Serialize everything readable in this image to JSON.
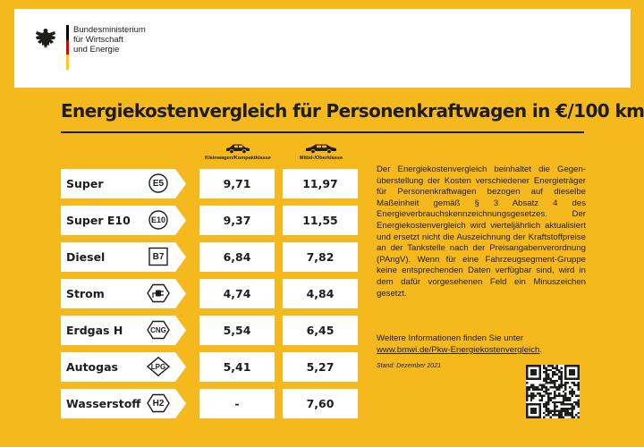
{
  "header": {
    "ministry_line1": "Bundesministerium",
    "ministry_line2": "für Wirtschaft",
    "ministry_line3": "und Energie",
    "flag_colors": [
      "#000000",
      "#dd0000",
      "#ffcc00"
    ]
  },
  "title": "Energiekostenvergleich für Personenkraftwagen in €/100 km",
  "columns": {
    "col1": "Kleinwagen/Kompaktklasse",
    "col2": "Mittel-/Oberklasse"
  },
  "rows": [
    {
      "fuel": "Super",
      "badge": "E5",
      "badge_shape": "circle",
      "v1": "9,71",
      "v2": "11,97"
    },
    {
      "fuel": "Super E10",
      "badge": "E10",
      "badge_shape": "circle",
      "v1": "9,37",
      "v2": "11,55"
    },
    {
      "fuel": "Diesel",
      "badge": "B7",
      "badge_shape": "square",
      "v1": "6,84",
      "v2": "7,82"
    },
    {
      "fuel": "Strom",
      "badge": "",
      "badge_shape": "hexagon-plug",
      "v1": "4,74",
      "v2": "4,84"
    },
    {
      "fuel": "Erdgas H",
      "badge": "CNG",
      "badge_shape": "hexagon",
      "v1": "5,54",
      "v2": "6,45"
    },
    {
      "fuel": "Autogas",
      "badge": "LPG",
      "badge_shape": "diamond",
      "v1": "5,41",
      "v2": "5,27"
    },
    {
      "fuel": "Wasserstoff",
      "badge": "H2",
      "badge_shape": "hexagon",
      "v1": "-",
      "v2": "7,60"
    }
  ],
  "description": "Der Energiekostenvergleich beinhaltet die Gegen­überstellung der Kosten verschiedener Energie­träger für Personenkraftwagen bezogen auf dieselbe Maßeinheit gemäß § 3 Absatz 4 des Energieverbrauchskennzeichnungsgesetzes. Der Energiekostenvergleich wird vierteljährlich aktu­alisiert und ersetzt nicht die Auszeichnung der Kraftstoffpreise an der Tankstelle nach der Preis­angabenverordnung (PAngV). Wenn für eine Fahrzeugsegment-Gruppe keine entsprechenden Daten verfügbar sind, wird in dem dafür vorgese­henen Feld ein Minuszeichen gesetzt.",
  "more_info": "Weitere Informationen finden Sie unter",
  "link": "www.bmwi.de/Pkw-Energiekostenvergleich",
  "link_suffix": ".",
  "stand": "Stand: Dezember 2021",
  "colors": {
    "background": "#f6b91d",
    "text": "#1d1d1b"
  }
}
